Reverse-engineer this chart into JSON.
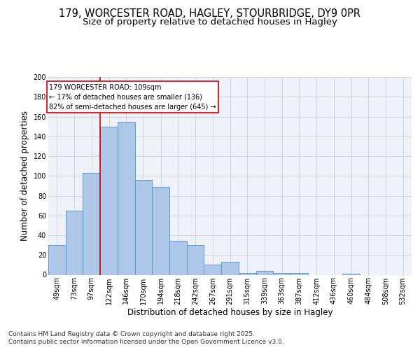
{
  "title_line1": "179, WORCESTER ROAD, HAGLEY, STOURBRIDGE, DY9 0PR",
  "title_line2": "Size of property relative to detached houses in Hagley",
  "xlabel": "Distribution of detached houses by size in Hagley",
  "ylabel": "Number of detached properties",
  "categories": [
    "49sqm",
    "73sqm",
    "97sqm",
    "122sqm",
    "146sqm",
    "170sqm",
    "194sqm",
    "218sqm",
    "242sqm",
    "267sqm",
    "291sqm",
    "315sqm",
    "339sqm",
    "363sqm",
    "387sqm",
    "412sqm",
    "436sqm",
    "460sqm",
    "484sqm",
    "508sqm",
    "532sqm"
  ],
  "values": [
    30,
    65,
    103,
    150,
    155,
    96,
    89,
    34,
    30,
    10,
    13,
    2,
    4,
    2,
    2,
    0,
    0,
    1,
    0,
    0,
    0
  ],
  "bar_color": "#aec6e8",
  "bar_edge_color": "#5b9bd5",
  "annotation_box_color": "#ffffff",
  "annotation_border_color": "#cc0000",
  "vline_color": "#cc0000",
  "vline_x": 2.5,
  "annotation_text_line1": "179 WORCESTER ROAD: 109sqm",
  "annotation_text_line2": "← 17% of detached houses are smaller (136)",
  "annotation_text_line3": "82% of semi-detached houses are larger (645) →",
  "ylim": [
    0,
    200
  ],
  "yticks": [
    0,
    20,
    40,
    60,
    80,
    100,
    120,
    140,
    160,
    180,
    200
  ],
  "bg_color": "#eef2f8",
  "grid_color": "#c8d4e4",
  "footer_line1": "Contains HM Land Registry data © Crown copyright and database right 2025.",
  "footer_line2": "Contains public sector information licensed under the Open Government Licence v3.0.",
  "title_fontsize": 10.5,
  "subtitle_fontsize": 9.5,
  "axis_label_fontsize": 8.5,
  "tick_fontsize": 7,
  "annotation_fontsize": 7,
  "footer_fontsize": 6.5
}
